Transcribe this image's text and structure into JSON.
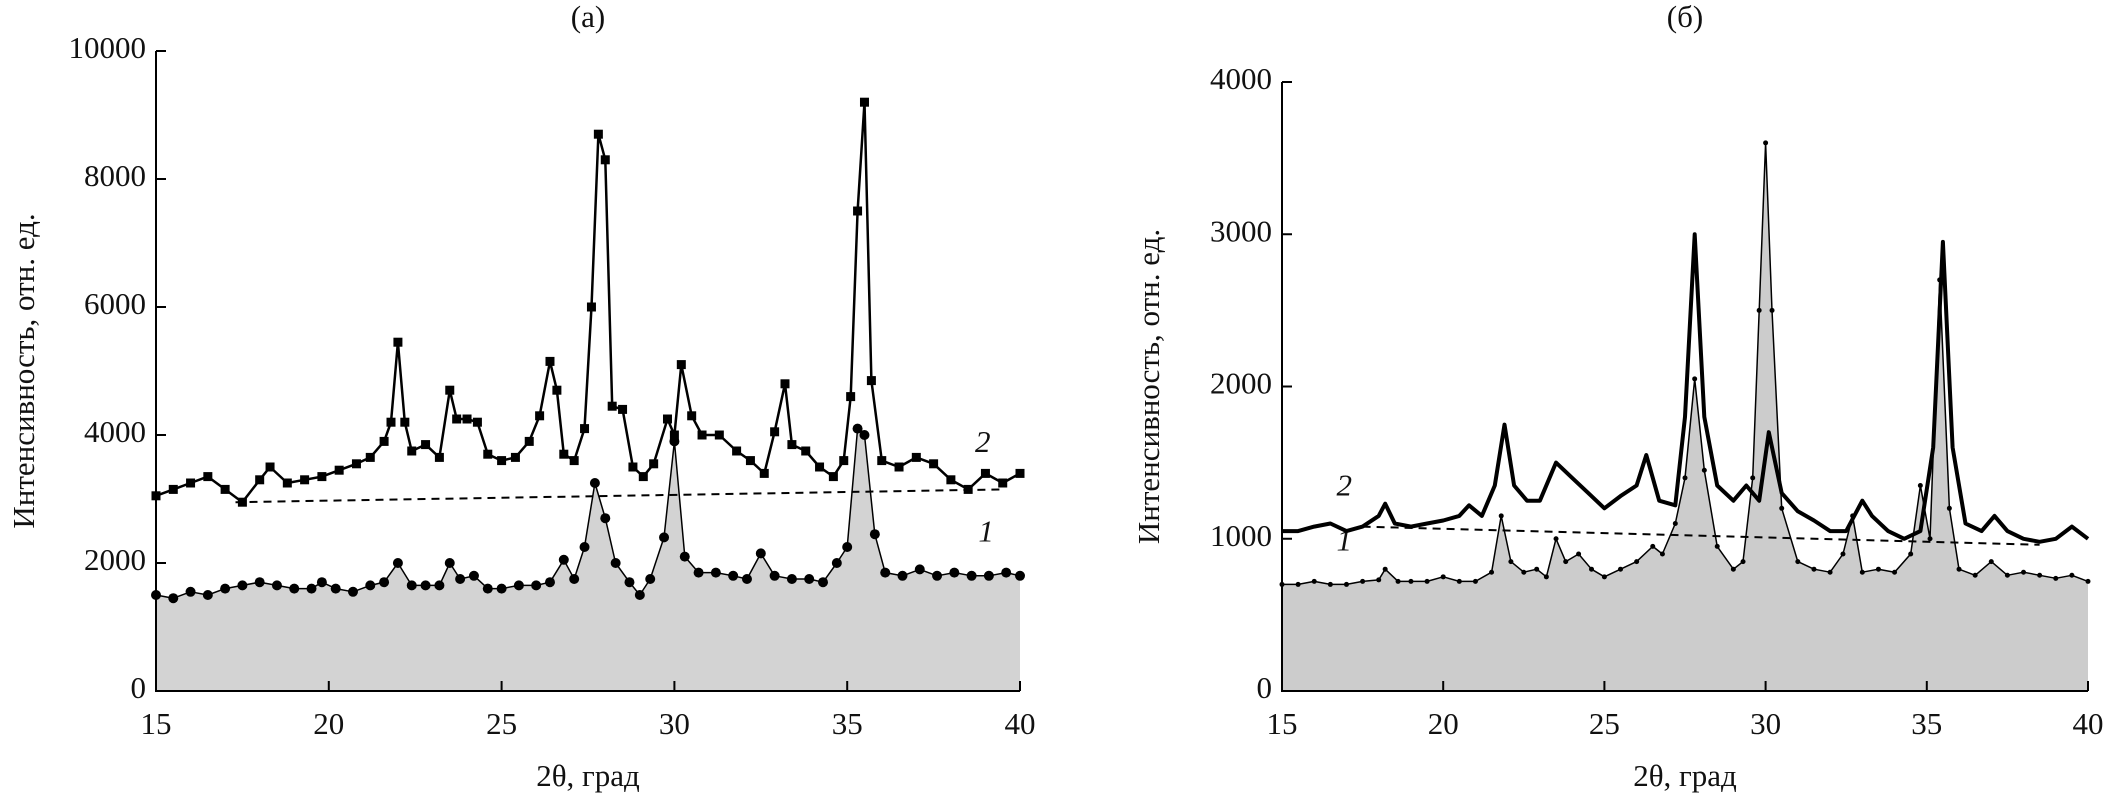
{
  "chart_data": [
    {
      "type": "line",
      "title": "(a)",
      "xlabel": "2θ, град",
      "ylabel": "Интенсивность, отн. ед.",
      "xlim": [
        15,
        40
      ],
      "ylim": [
        0,
        10000
      ],
      "xticks": [
        15,
        20,
        25,
        30,
        35,
        40
      ],
      "yticks": [
        0,
        2000,
        4000,
        6000,
        8000,
        10000
      ],
      "series": [
        {
          "name": "1",
          "color": "#000000",
          "marker": "circle",
          "fill": "#d3d3d3",
          "linewidth": 1.5,
          "x": [
            15,
            15.5,
            16,
            16.5,
            17,
            17.5,
            18,
            18.5,
            19,
            19.5,
            19.8,
            20.2,
            20.7,
            21.2,
            21.6,
            22,
            22.4,
            22.8,
            23.2,
            23.5,
            23.8,
            24.2,
            24.6,
            25,
            25.5,
            26,
            26.4,
            26.8,
            27.1,
            27.4,
            27.7,
            28,
            28.3,
            28.7,
            29,
            29.3,
            29.7,
            30,
            30.3,
            30.7,
            31.2,
            31.7,
            32.1,
            32.5,
            32.9,
            33.4,
            33.9,
            34.3,
            34.7,
            35,
            35.3,
            35.5,
            35.8,
            36.1,
            36.6,
            37.1,
            37.6,
            38.1,
            38.6,
            39.1,
            39.6,
            40
          ],
          "values": [
            1500,
            1450,
            1550,
            1500,
            1600,
            1650,
            1700,
            1650,
            1600,
            1600,
            1700,
            1600,
            1550,
            1650,
            1700,
            2000,
            1650,
            1650,
            1650,
            2000,
            1750,
            1800,
            1600,
            1600,
            1650,
            1650,
            1700,
            2050,
            1750,
            2250,
            3250,
            2700,
            2000,
            1700,
            1500,
            1750,
            2400,
            3900,
            2100,
            1850,
            1850,
            1800,
            1750,
            2150,
            1800,
            1750,
            1750,
            1700,
            2000,
            2250,
            4100,
            4000,
            2450,
            1850,
            1800,
            1900,
            1800,
            1850,
            1800,
            1800,
            1850,
            1800
          ]
        },
        {
          "name": "2",
          "color": "#000000",
          "marker": "square",
          "linewidth": 2.5,
          "x": [
            15,
            15.5,
            16,
            16.5,
            17,
            17.5,
            18,
            18.3,
            18.8,
            19.3,
            19.8,
            20.3,
            20.8,
            21.2,
            21.6,
            21.8,
            22,
            22.2,
            22.4,
            22.8,
            23.2,
            23.5,
            23.7,
            24,
            24.3,
            24.6,
            25,
            25.4,
            25.8,
            26.1,
            26.4,
            26.6,
            26.8,
            27.1,
            27.4,
            27.6,
            27.8,
            28,
            28.2,
            28.5,
            28.8,
            29.1,
            29.4,
            29.8,
            30,
            30.2,
            30.5,
            30.8,
            31.3,
            31.8,
            32.2,
            32.6,
            32.9,
            33.2,
            33.4,
            33.8,
            34.2,
            34.6,
            34.9,
            35.1,
            35.3,
            35.5,
            35.7,
            36,
            36.5,
            37,
            37.5,
            38,
            38.5,
            39,
            39.5,
            40
          ],
          "values": [
            3050,
            3150,
            3250,
            3350,
            3150,
            2950,
            3300,
            3500,
            3250,
            3300,
            3350,
            3450,
            3550,
            3650,
            3900,
            4200,
            5450,
            4200,
            3750,
            3850,
            3650,
            4700,
            4250,
            4250,
            4200,
            3700,
            3600,
            3650,
            3900,
            4300,
            5150,
            4700,
            3700,
            3600,
            4100,
            6000,
            8700,
            8300,
            4450,
            4400,
            3500,
            3350,
            3550,
            4250,
            4000,
            5100,
            4300,
            4000,
            4000,
            3750,
            3600,
            3400,
            4050,
            4800,
            3850,
            3750,
            3500,
            3350,
            3600,
            4600,
            7500,
            9200,
            4850,
            3600,
            3500,
            3650,
            3550,
            3300,
            3150,
            3400,
            3250,
            3400
          ]
        },
        {
          "color": "#000000",
          "dash": true,
          "linewidth": 2,
          "x": [
            17.3,
            39.5
          ],
          "values": [
            2950,
            3150
          ]
        }
      ]
    },
    {
      "type": "line",
      "title": "(б)",
      "xlabel": "2θ, град",
      "ylabel": "Интенсивность, отн. ед.",
      "xlim": [
        15,
        40
      ],
      "ylim": [
        0,
        4000
      ],
      "xticks": [
        15,
        20,
        25,
        30,
        35,
        40
      ],
      "yticks": [
        0,
        1000,
        2000,
        3000,
        4000
      ],
      "series": [
        {
          "name": "1",
          "color": "#000000",
          "marker": "dot",
          "fill": "#cccccc",
          "linewidth": 1.5,
          "x": [
            15,
            15.5,
            16,
            16.5,
            17,
            17.5,
            18,
            18.2,
            18.6,
            19,
            19.5,
            20,
            20.5,
            21,
            21.5,
            21.8,
            22.1,
            22.5,
            22.9,
            23.2,
            23.5,
            23.8,
            24.2,
            24.6,
            25,
            25.5,
            26,
            26.5,
            26.8,
            27.2,
            27.5,
            27.8,
            28.1,
            28.5,
            29,
            29.3,
            29.6,
            29.8,
            30,
            30.2,
            30.5,
            31,
            31.5,
            32,
            32.4,
            32.7,
            33,
            33.5,
            34,
            34.5,
            34.8,
            35.1,
            35.4,
            35.7,
            36,
            36.5,
            37,
            37.5,
            38,
            38.5,
            39,
            39.5,
            40
          ],
          "values": [
            700,
            700,
            720,
            700,
            700,
            720,
            730,
            800,
            720,
            720,
            720,
            750,
            720,
            720,
            780,
            1150,
            850,
            780,
            800,
            750,
            1000,
            850,
            900,
            800,
            750,
            800,
            850,
            950,
            900,
            1100,
            1400,
            2050,
            1450,
            950,
            800,
            850,
            1400,
            2500,
            3600,
            2500,
            1200,
            850,
            800,
            780,
            900,
            1150,
            780,
            800,
            780,
            900,
            1350,
            1000,
            2700,
            1200,
            800,
            760,
            850,
            760,
            780,
            760,
            740,
            760,
            720
          ]
        },
        {
          "name": "2",
          "color": "#000000",
          "linewidth": 4,
          "x": [
            15,
            15.5,
            16,
            16.5,
            17,
            17.5,
            18,
            18.2,
            18.5,
            19,
            19.5,
            20,
            20.5,
            20.8,
            21.2,
            21.6,
            21.9,
            22.2,
            22.6,
            23,
            23.5,
            24,
            24.5,
            25,
            25.5,
            26,
            26.3,
            26.7,
            27.2,
            27.5,
            27.8,
            28.1,
            28.5,
            29,
            29.4,
            29.8,
            30.1,
            30.5,
            31,
            31.5,
            32,
            32.5,
            33,
            33.3,
            33.8,
            34.3,
            34.8,
            35.2,
            35.5,
            35.8,
            36.2,
            36.7,
            37.1,
            37.5,
            38,
            38.5,
            39,
            39.5,
            40
          ],
          "values": [
            1050,
            1050,
            1080,
            1100,
            1050,
            1080,
            1150,
            1230,
            1100,
            1080,
            1100,
            1120,
            1150,
            1220,
            1150,
            1350,
            1750,
            1350,
            1250,
            1250,
            1500,
            1400,
            1300,
            1200,
            1280,
            1350,
            1550,
            1250,
            1220,
            1800,
            3000,
            1800,
            1350,
            1250,
            1350,
            1250,
            1700,
            1300,
            1180,
            1120,
            1050,
            1050,
            1250,
            1150,
            1050,
            1000,
            1050,
            1600,
            2950,
            1600,
            1100,
            1050,
            1150,
            1050,
            1000,
            980,
            1000,
            1080,
            1000
          ]
        },
        {
          "color": "#000000",
          "dash": true,
          "linewidth": 2,
          "x": [
            17.5,
            38.5
          ],
          "values": [
            1080,
            960
          ]
        }
      ]
    }
  ]
}
